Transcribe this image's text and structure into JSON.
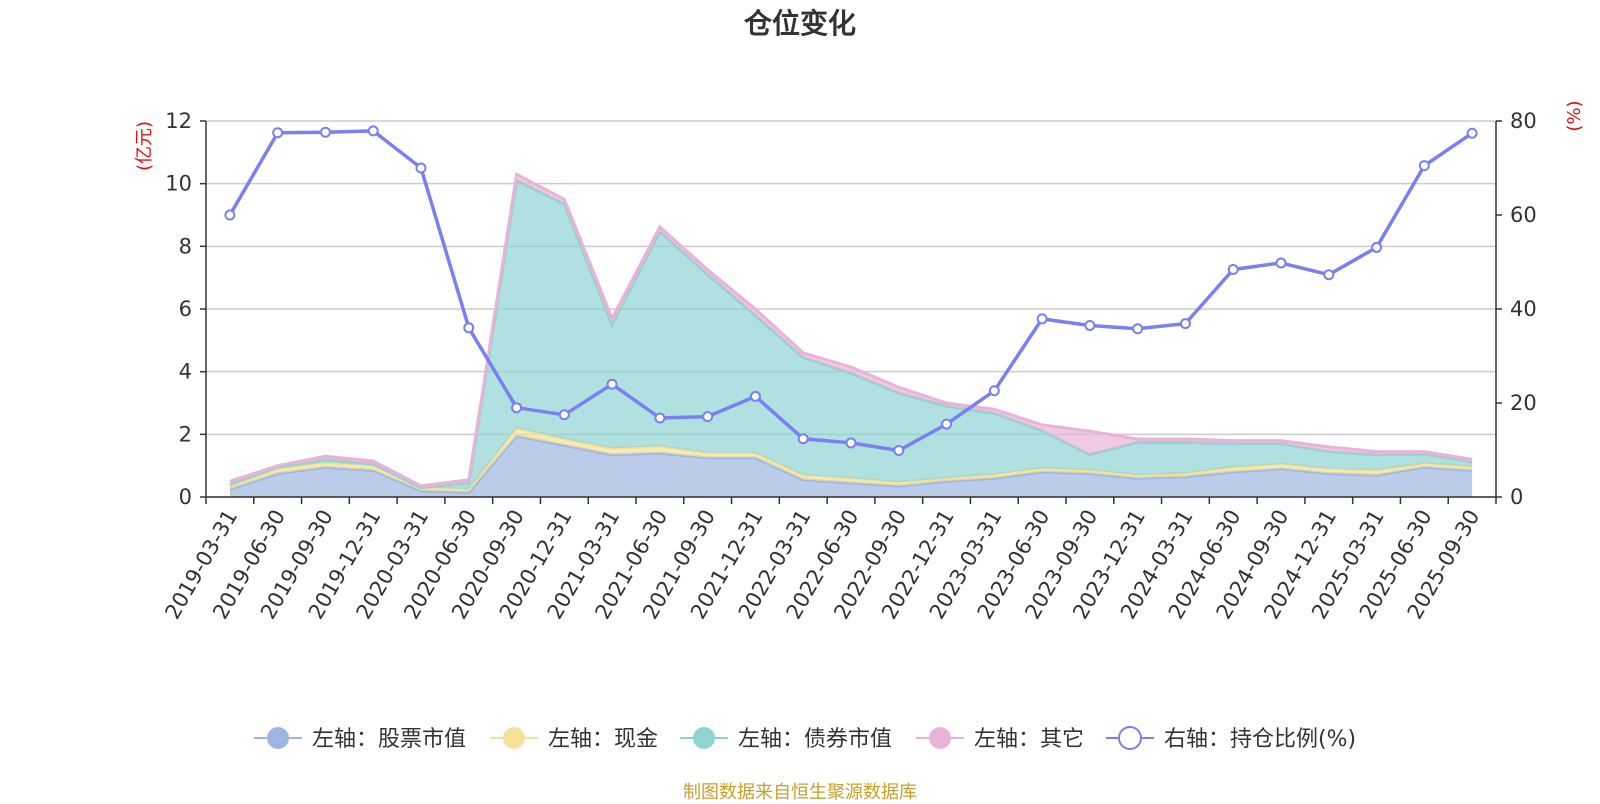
{
  "chart_data": {
    "type": "area",
    "title": "仓位变化",
    "ylabel_left": "(亿元)",
    "ylabel_right": "(%)",
    "ylim_left": [
      0,
      12
    ],
    "ylim_right": [
      0,
      80
    ],
    "yticks_left": [
      "0",
      "2",
      "4",
      "6",
      "8",
      "10",
      "12"
    ],
    "yticks_right": [
      "0",
      "20",
      "40",
      "60",
      "80"
    ],
    "grid": true,
    "legend_position": "bottom",
    "stacked": true,
    "categories": [
      "2019-03-31",
      "2019-06-30",
      "2019-09-30",
      "2019-12-31",
      "2020-03-31",
      "2020-06-30",
      "2020-09-30",
      "2020-12-31",
      "2021-03-31",
      "2021-06-30",
      "2021-09-30",
      "2021-12-31",
      "2022-03-31",
      "2022-06-30",
      "2022-09-30",
      "2022-12-31",
      "2023-03-31",
      "2023-06-30",
      "2023-09-30",
      "2023-12-31",
      "2024-03-31",
      "2024-06-30",
      "2024-09-30",
      "2024-12-31",
      "2025-03-31",
      "2025-06-30",
      "2025-09-30"
    ],
    "series": [
      {
        "name": "左轴：股票市值",
        "axis": "left",
        "color": "#9db6e1",
        "values": [
          0.25,
          0.75,
          0.95,
          0.85,
          0.2,
          0.15,
          1.95,
          1.65,
          1.35,
          1.4,
          1.25,
          1.25,
          0.55,
          0.45,
          0.35,
          0.5,
          0.6,
          0.8,
          0.75,
          0.6,
          0.65,
          0.8,
          0.9,
          0.75,
          0.7,
          0.95,
          0.85
        ]
      },
      {
        "name": "左轴：现金",
        "axis": "left",
        "color": "#f5e199",
        "values": [
          0.1,
          0.15,
          0.15,
          0.15,
          0.1,
          0.1,
          0.25,
          0.2,
          0.2,
          0.22,
          0.15,
          0.15,
          0.15,
          0.15,
          0.12,
          0.1,
          0.12,
          0.12,
          0.1,
          0.1,
          0.1,
          0.15,
          0.15,
          0.15,
          0.15,
          0.12,
          0.12
        ]
      },
      {
        "name": "左轴：债券市值",
        "axis": "left",
        "color": "#8fd3d3",
        "values": [
          0.05,
          0.05,
          0.1,
          0.05,
          0.0,
          0.2,
          7.9,
          7.5,
          3.95,
          6.85,
          5.7,
          4.4,
          3.75,
          3.35,
          2.85,
          2.3,
          1.95,
          1.2,
          0.5,
          1.05,
          1.0,
          0.75,
          0.65,
          0.55,
          0.5,
          0.3,
          0.15
        ]
      },
      {
        "name": "左轴：其它",
        "axis": "left",
        "color": "#e9b3d7",
        "values": [
          0.1,
          0.05,
          0.1,
          0.1,
          0.05,
          0.1,
          0.2,
          0.15,
          0.2,
          0.15,
          0.15,
          0.2,
          0.15,
          0.2,
          0.18,
          0.1,
          0.13,
          0.18,
          0.75,
          0.1,
          0.1,
          0.1,
          0.1,
          0.15,
          0.1,
          0.08,
          0.08
        ]
      },
      {
        "name": "右轴：持仓比例(%)",
        "axis": "right",
        "color": "#7b7ff0",
        "values": [
          60.0,
          77.5,
          77.6,
          77.9,
          70.0,
          36.0,
          19.0,
          17.5,
          24.0,
          16.8,
          17.1,
          21.4,
          12.4,
          11.5,
          9.9,
          15.5,
          22.6,
          37.9,
          36.5,
          35.8,
          36.9,
          48.4,
          49.8,
          47.3,
          53.1,
          70.5,
          77.4
        ]
      }
    ],
    "source": "制图数据来自恒生聚源数据库"
  }
}
